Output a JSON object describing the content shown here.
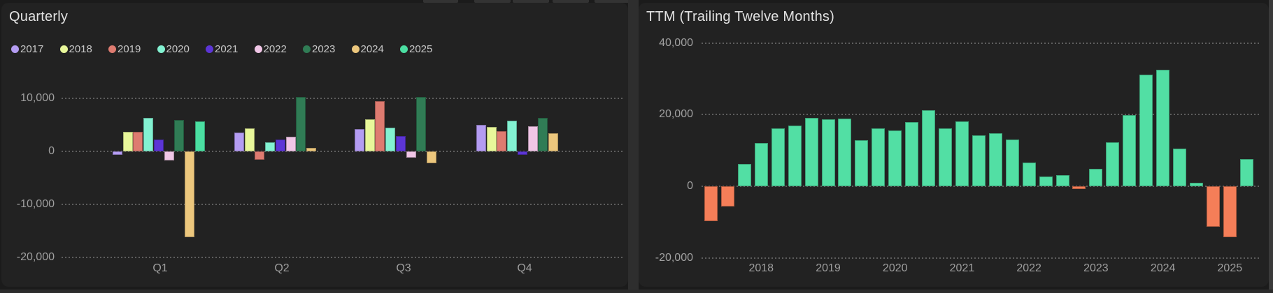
{
  "panels": [
    {
      "title": "Quarterly"
    },
    {
      "title": "TTM (Trailing Twelve Months)"
    }
  ],
  "chart_data": [
    {
      "type": "bar",
      "title": "Quarterly",
      "categories": [
        "Q1",
        "Q2",
        "Q3",
        "Q4"
      ],
      "series": [
        {
          "name": "2017",
          "color": "#b49cf2",
          "values": [
            -700,
            3500,
            4150,
            5000
          ]
        },
        {
          "name": "2018",
          "color": "#e8f79a",
          "values": [
            3700,
            4400,
            6050,
            4650
          ]
        },
        {
          "name": "2019",
          "color": "#de7b70",
          "values": [
            3750,
            -1580,
            9470,
            3820
          ]
        },
        {
          "name": "2020",
          "color": "#83f2d2",
          "values": [
            6270,
            1750,
            4510,
            5740
          ]
        },
        {
          "name": "2021",
          "color": "#5c35d6",
          "values": [
            2280,
            2280,
            2840,
            -700
          ]
        },
        {
          "name": "2022",
          "color": "#f0c6e6",
          "values": [
            -1670,
            2710,
            -1140,
            4680
          ]
        },
        {
          "name": "2023",
          "color": "#307c55",
          "values": [
            5960,
            10210,
            10210,
            6320
          ]
        },
        {
          "name": "2024",
          "color": "#ecc77d",
          "values": [
            -16140,
            700,
            -2240,
            3460
          ]
        },
        {
          "name": "2025",
          "color": "#4bdfa2",
          "values": [
            5700,
            null,
            null,
            null
          ]
        }
      ],
      "yticks": [
        {
          "value": 10000,
          "label": "10,000"
        },
        {
          "value": 0,
          "label": "0"
        },
        {
          "value": -10000,
          "label": "-10,000"
        },
        {
          "value": -20000,
          "label": "-20,000"
        }
      ],
      "ylim": [
        -21000,
        12000
      ],
      "grid": "dotted",
      "legend_position": "top"
    },
    {
      "type": "bar",
      "title": "TTM (Trailing Twelve Months)",
      "values": [
        -9700,
        -5700,
        6300,
        12100,
        16100,
        17000,
        19000,
        18650,
        18800,
        12830,
        16260,
        15500,
        17900,
        21300,
        16200,
        18200,
        14250,
        14760,
        13000,
        6600,
        2780,
        3170,
        -800,
        4850,
        12360,
        19850,
        31100,
        32560,
        10420,
        1030,
        -11300,
        -14200,
        7650
      ],
      "color_positive": "#52dfa4",
      "color_negative": "#f57e58",
      "x_ticks": [
        {
          "bar_index": 3,
          "label": "2018"
        },
        {
          "bar_index": 7,
          "label": "2019"
        },
        {
          "bar_index": 11,
          "label": "2020"
        },
        {
          "bar_index": 15,
          "label": "2021"
        },
        {
          "bar_index": 19,
          "label": "2022"
        },
        {
          "bar_index": 23,
          "label": "2023"
        },
        {
          "bar_index": 27,
          "label": "2024"
        },
        {
          "bar_index": 31,
          "label": "2025"
        }
      ],
      "yticks": [
        {
          "value": 40000,
          "label": "40,000"
        },
        {
          "value": 20000,
          "label": "20,000"
        },
        {
          "value": 0,
          "label": "0"
        },
        {
          "value": -20000,
          "label": "-20,000"
        }
      ],
      "ylim": [
        -21000,
        40000
      ],
      "grid": "dotted",
      "legend_position": "none"
    }
  ],
  "theme": {
    "page_bg": "#1b1b1b",
    "panel_bg": "#222222",
    "gap_color": "#2e2e2e",
    "scrollbar_color": "#3a3a3a",
    "grid_dot_color": "#616161",
    "title_color": "#e2e2e2",
    "axis_label_color": "#a0a0a0",
    "legend_text_color": "#c8c8c8",
    "positive_bar_color": "#52dfa4",
    "negative_bar_color": "#f57e58"
  }
}
